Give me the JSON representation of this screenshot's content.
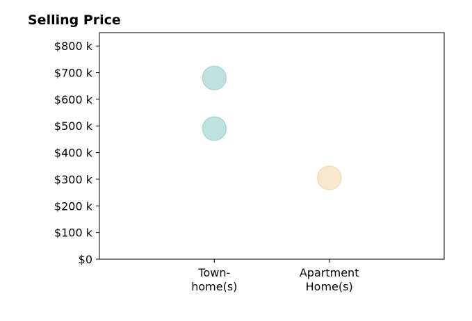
{
  "chart_data": {
    "type": "scatter",
    "title": "Selling Price",
    "xlabel": "",
    "ylabel": "",
    "categories": [
      [
        "Town-",
        "home(s)"
      ],
      [
        "Apartment",
        "Home(s)"
      ]
    ],
    "x_positions": [
      1,
      2
    ],
    "xlim": [
      0,
      3
    ],
    "ylim": [
      0,
      850000
    ],
    "yticks": [
      0,
      100000,
      200000,
      300000,
      400000,
      500000,
      600000,
      700000,
      800000
    ],
    "ytick_labels": [
      "$0",
      "$100 k",
      "$200 k",
      "$300 k",
      "$400 k",
      "$500 k",
      "$600 k",
      "$700 k",
      "$800 k"
    ],
    "grid": false,
    "points": [
      {
        "category": 0,
        "y": 680000,
        "color": "#bfe1df",
        "edge": "#a9d7d4"
      },
      {
        "category": 0,
        "y": 490000,
        "color": "#bfe1df",
        "edge": "#a9d7d4"
      },
      {
        "category": 1,
        "y": 305000,
        "color": "#f6e9cf",
        "edge": "#efdfbd"
      }
    ]
  }
}
